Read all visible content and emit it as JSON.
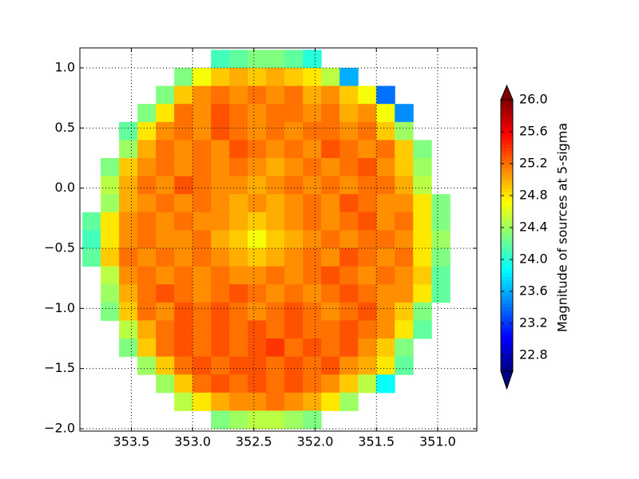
{
  "chart_data": {
    "type": "heatmap",
    "colorbar_label": "Magnitude of sources at 5-sigma",
    "colormap": "jet",
    "grid": true,
    "xlim": [
      353.92,
      350.68
    ],
    "ylim": [
      -2.02,
      1.166
    ],
    "clim": [
      22.6,
      26.0
    ],
    "xticks": [
      353.5,
      {
        "value": 353.0,
        "label": "353.0"
      },
      352.5,
      {
        "value": 352.0,
        "label": "352.0"
      },
      351.5,
      {
        "value": 351.0,
        "label": "351.0"
      }
    ],
    "yticks": [
      {
        "value": 1.0,
        "label": "1.0"
      },
      0.5,
      {
        "value": 0.0,
        "label": "0.0"
      },
      {
        "value": -0.5,
        "label": "−0.5"
      },
      {
        "value": -1.0,
        "label": "−1.0"
      },
      {
        "value": -1.5,
        "label": "−1.5"
      },
      {
        "value": -2.0,
        "label": "−2.0"
      }
    ],
    "cticks": [
      22.8,
      23.2,
      23.6,
      {
        "value": 24.0,
        "label": "24.0"
      },
      24.4,
      24.8,
      25.2,
      25.6,
      {
        "value": 26.0,
        "label": "26.0"
      }
    ],
    "x": [
      353.825,
      353.675,
      353.525,
      353.375,
      353.225,
      353.075,
      352.925,
      352.775,
      352.625,
      352.475,
      352.325,
      352.175,
      352.025,
      351.875,
      351.725,
      351.575,
      351.425,
      351.275,
      351.125,
      350.975,
      350.825
    ],
    "y": [
      1.075,
      0.925,
      0.775,
      0.625,
      0.475,
      0.325,
      0.175,
      0.025,
      -0.125,
      -0.275,
      -0.425,
      -0.575,
      -0.725,
      -0.875,
      -1.025,
      -1.175,
      -1.325,
      -1.475,
      -1.625,
      -1.775,
      -1.925
    ],
    "z": [
      [
        null,
        null,
        null,
        null,
        null,
        null,
        null,
        24.1,
        24.2,
        24.3,
        24.3,
        24.2,
        24.0,
        null,
        null,
        null,
        null,
        null,
        null,
        null,
        null
      ],
      [
        null,
        null,
        null,
        null,
        null,
        24.3,
        24.7,
        24.9,
        25.0,
        24.9,
        25.0,
        24.9,
        24.8,
        24.5,
        23.6,
        null,
        null,
        null,
        null,
        null,
        null
      ],
      [
        null,
        null,
        null,
        null,
        24.3,
        24.9,
        25.1,
        25.2,
        25.1,
        25.2,
        25.1,
        25.2,
        25.0,
        25.1,
        24.9,
        24.7,
        23.4,
        null,
        null,
        null,
        null
      ],
      [
        null,
        null,
        null,
        24.3,
        24.8,
        25.2,
        25.1,
        25.3,
        25.2,
        25.1,
        25.2,
        25.2,
        25.1,
        25.2,
        25.0,
        25.1,
        24.7,
        23.5,
        null,
        null,
        null
      ],
      [
        null,
        null,
        24.2,
        24.8,
        25.1,
        25.2,
        25.1,
        25.3,
        25.2,
        25.1,
        25.2,
        25.1,
        25.2,
        25.2,
        25.1,
        25.2,
        24.9,
        24.4,
        null,
        null,
        null
      ],
      [
        null,
        null,
        24.4,
        25.0,
        25.2,
        25.1,
        25.2,
        25.1,
        25.3,
        25.2,
        25.1,
        25.2,
        25.1,
        25.3,
        25.2,
        25.1,
        25.2,
        24.9,
        24.3,
        null,
        null
      ],
      [
        null,
        24.3,
        24.9,
        25.1,
        25.2,
        25.1,
        25.2,
        25.1,
        25.2,
        25.1,
        25.0,
        25.1,
        25.2,
        25.1,
        25.2,
        25.3,
        25.1,
        24.9,
        24.4,
        null,
        null
      ],
      [
        null,
        24.5,
        25.0,
        25.2,
        25.1,
        25.3,
        25.2,
        25.1,
        25.1,
        25.0,
        25.1,
        25.2,
        25.1,
        25.2,
        25.1,
        25.2,
        25.2,
        25.0,
        24.5,
        null,
        null
      ],
      [
        null,
        24.4,
        25.0,
        25.1,
        25.2,
        25.1,
        25.2,
        25.1,
        25.0,
        25.1,
        25.0,
        25.1,
        25.2,
        25.1,
        25.3,
        25.2,
        25.1,
        25.1,
        24.8,
        24.3,
        null
      ],
      [
        24.2,
        24.8,
        25.1,
        25.2,
        25.1,
        25.2,
        25.1,
        25.1,
        25.0,
        24.9,
        25.0,
        25.1,
        25.2,
        25.1,
        25.2,
        25.3,
        25.1,
        25.2,
        24.8,
        24.3,
        null
      ],
      [
        24.1,
        24.8,
        25.1,
        25.2,
        25.1,
        25.1,
        25.2,
        25.0,
        24.9,
        24.7,
        24.9,
        25.0,
        25.1,
        25.2,
        25.1,
        25.2,
        25.2,
        25.1,
        24.8,
        24.4,
        null
      ],
      [
        24.2,
        24.9,
        25.2,
        25.1,
        25.2,
        25.1,
        25.2,
        25.1,
        25.0,
        24.9,
        25.0,
        25.1,
        25.2,
        25.1,
        25.3,
        25.2,
        25.1,
        25.2,
        24.8,
        24.3,
        null
      ],
      [
        null,
        24.5,
        25.1,
        25.2,
        25.1,
        25.2,
        25.1,
        25.2,
        25.1,
        25.1,
        25.2,
        25.1,
        25.2,
        25.3,
        25.2,
        25.1,
        25.2,
        25.1,
        24.9,
        24.2,
        null
      ],
      [
        null,
        24.4,
        25.0,
        25.2,
        25.3,
        25.2,
        25.1,
        25.2,
        25.3,
        25.2,
        25.1,
        25.2,
        25.1,
        25.2,
        25.3,
        25.2,
        25.1,
        25.1,
        24.8,
        24.2,
        null
      ],
      [
        null,
        24.3,
        24.9,
        25.2,
        25.1,
        25.3,
        25.2,
        25.3,
        25.2,
        25.1,
        25.2,
        25.3,
        25.2,
        25.1,
        25.2,
        25.3,
        25.1,
        24.9,
        24.3,
        null,
        null
      ],
      [
        null,
        null,
        24.5,
        25.0,
        25.2,
        25.3,
        25.2,
        25.3,
        25.2,
        25.3,
        25.2,
        25.3,
        25.2,
        25.2,
        25.3,
        25.2,
        25.1,
        24.8,
        24.2,
        null,
        null
      ],
      [
        null,
        null,
        24.3,
        24.9,
        25.2,
        25.3,
        25.2,
        25.3,
        25.2,
        25.3,
        25.4,
        25.2,
        25.3,
        25.2,
        25.3,
        25.1,
        24.9,
        24.3,
        null,
        null,
        null
      ],
      [
        null,
        null,
        null,
        24.4,
        24.9,
        25.2,
        25.3,
        25.2,
        25.3,
        25.3,
        25.2,
        25.3,
        25.2,
        25.3,
        25.1,
        25.0,
        24.8,
        24.2,
        null,
        null,
        null
      ],
      [
        null,
        null,
        null,
        null,
        24.4,
        24.9,
        25.2,
        25.3,
        25.2,
        25.3,
        25.2,
        25.3,
        25.2,
        25.1,
        24.9,
        24.5,
        23.9,
        null,
        null,
        null,
        null
      ],
      [
        null,
        null,
        null,
        null,
        null,
        24.5,
        24.8,
        25.0,
        25.1,
        25.1,
        25.2,
        25.1,
        25.0,
        24.8,
        24.4,
        null,
        null,
        null,
        null,
        null,
        null
      ],
      [
        null,
        null,
        null,
        null,
        null,
        null,
        null,
        24.3,
        24.4,
        24.5,
        24.5,
        24.4,
        24.3,
        null,
        null,
        null,
        null,
        null,
        null,
        null,
        null
      ]
    ]
  }
}
